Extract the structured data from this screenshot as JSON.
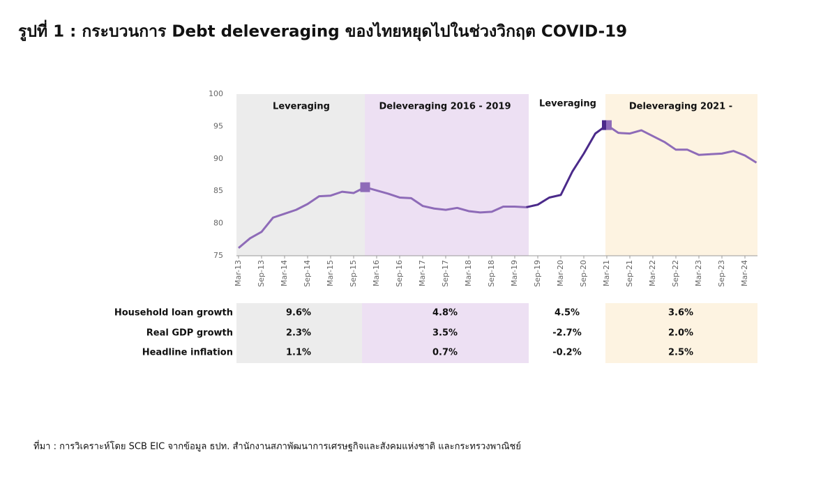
{
  "title": "รูปที่ 1 : กระบวนการ Debt deleveraging ของไทยหยุดไปในช่วงวิกฤต COVID-19",
  "source": "ที่มา : การวิเคราะห์โดย SCB EIC จากข้อมูล ธปท. สำนักงานสภาพัฒนาการเศรษฐกิจและสังคมแห่งชาติ และกระทรวงพาณิชย์",
  "chart_data": {
    "type": "line",
    "categories": [
      "Mar-13",
      null,
      "Sep-13",
      null,
      "Mar-14",
      null,
      "Sep-14",
      null,
      "Mar-15",
      null,
      "Sep-15",
      null,
      "Mar-16",
      null,
      "Sep-16",
      null,
      "Mar-17",
      null,
      "Sep-17",
      null,
      "Mar-18",
      null,
      "Sep-18",
      null,
      "Mar-19",
      null,
      "Sep-19",
      null,
      "Mar-20",
      null,
      "Sep-20",
      null,
      "Mar-21",
      null,
      "Sep-21",
      null,
      "Mar-22",
      null,
      "Sep-22",
      null,
      "Mar-23",
      null,
      "Sep-23",
      null,
      "Mar-24",
      null
    ],
    "values": [
      76.2,
      77.7,
      78.7,
      80.9,
      81.5,
      82.1,
      83.0,
      84.2,
      84.3,
      84.9,
      84.7,
      85.6,
      85.1,
      84.6,
      84.0,
      83.9,
      82.7,
      82.3,
      82.1,
      82.4,
      81.9,
      81.7,
      81.8,
      82.6,
      82.6,
      82.5,
      82.9,
      84.0,
      84.4,
      88.0,
      90.8,
      93.9,
      95.2,
      94.0,
      93.9,
      94.4,
      93.5,
      92.6,
      91.4,
      91.4,
      90.6,
      90.7,
      90.8,
      91.2,
      90.5,
      89.4
    ],
    "color": "#8e6bb8",
    "ylim": [
      75,
      100
    ],
    "yticks": [
      75,
      80,
      85,
      90,
      95,
      100
    ],
    "periods": [
      {
        "label": "Leveraging",
        "color": "#ececec",
        "line_color": "#8e6bb8"
      },
      {
        "label": "Deleveraging 2016 - 2019",
        "color": "#ede0f3",
        "line_color": "#8e6bb8"
      },
      {
        "label": "Leveraging",
        "color": "#ffffff",
        "line_color": "#4b2a8a"
      },
      {
        "label": "Deleveraging 2021 -",
        "color": "#fdf3e1",
        "line_color": "#8e6bb8"
      }
    ]
  },
  "table": {
    "rows": [
      {
        "label": "Household loan growth",
        "cells": [
          "9.6%",
          "4.8%",
          "4.5%",
          "3.6%"
        ]
      },
      {
        "label": "Real GDP growth",
        "cells": [
          "2.3%",
          "3.5%",
          "-2.7%",
          "2.0%"
        ]
      },
      {
        "label": "Headline inflation",
        "cells": [
          "1.1%",
          "0.7%",
          "-0.2%",
          "2.5%"
        ]
      }
    ]
  }
}
